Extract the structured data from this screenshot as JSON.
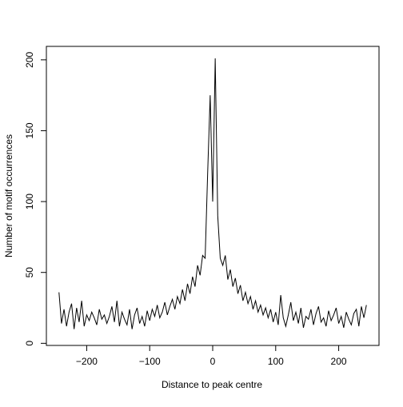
{
  "chart_data": {
    "type": "line",
    "xlabel": "Distance to peak centre",
    "ylabel": "Number of motif occurrences",
    "x": [
      -244,
      -240,
      -236,
      -232,
      -228,
      -224,
      -220,
      -216,
      -212,
      -208,
      -204,
      -200,
      -196,
      -192,
      -188,
      -184,
      -180,
      -176,
      -172,
      -168,
      -164,
      -160,
      -156,
      -152,
      -148,
      -144,
      -140,
      -136,
      -132,
      -128,
      -124,
      -120,
      -116,
      -112,
      -108,
      -104,
      -100,
      -96,
      -92,
      -88,
      -84,
      -80,
      -76,
      -72,
      -68,
      -64,
      -60,
      -56,
      -52,
      -48,
      -44,
      -40,
      -36,
      -32,
      -28,
      -24,
      -20,
      -16,
      -12,
      -8,
      -4,
      0,
      4,
      8,
      12,
      16,
      20,
      24,
      28,
      32,
      36,
      40,
      44,
      48,
      52,
      56,
      60,
      64,
      68,
      72,
      76,
      80,
      84,
      88,
      92,
      96,
      100,
      104,
      108,
      112,
      116,
      120,
      124,
      128,
      132,
      136,
      140,
      144,
      148,
      152,
      156,
      160,
      164,
      168,
      172,
      176,
      180,
      184,
      188,
      192,
      196,
      200,
      204,
      208,
      212,
      216,
      220,
      224,
      228,
      232,
      236,
      240,
      244
    ],
    "series": [
      {
        "color": "#000000",
        "values": [
          36,
          14,
          24,
          12,
          22,
          28,
          10,
          25,
          15,
          30,
          12,
          20,
          16,
          22,
          18,
          13,
          24,
          17,
          20,
          14,
          19,
          26,
          15,
          30,
          12,
          22,
          17,
          13,
          24,
          10,
          20,
          25,
          14,
          19,
          12,
          23,
          16,
          24,
          19,
          27,
          18,
          22,
          29,
          20,
          26,
          31,
          24,
          33,
          28,
          38,
          30,
          42,
          35,
          47,
          40,
          55,
          48,
          62,
          60,
          120,
          175,
          100,
          201,
          90,
          60,
          55,
          62,
          45,
          52,
          40,
          46,
          35,
          41,
          30,
          36,
          28,
          33,
          24,
          30,
          22,
          27,
          20,
          25,
          18,
          24,
          15,
          22,
          13,
          34,
          18,
          12,
          20,
          29,
          16,
          22,
          14,
          25,
          11,
          19,
          17,
          24,
          13,
          21,
          26,
          15,
          18,
          12,
          23,
          16,
          20,
          25,
          14,
          19,
          11,
          22,
          17,
          13,
          21,
          24,
          12,
          26,
          18,
          27
        ]
      }
    ],
    "xlim": [
      -264,
      264
    ],
    "ylim": [
      -1.5,
      209.5
    ],
    "xticks": [
      {
        "value": -200,
        "label": "−200"
      },
      {
        "value": -100,
        "label": "−100"
      },
      0,
      100,
      200
    ],
    "yticks": [
      0,
      50,
      100,
      150,
      200
    ]
  }
}
